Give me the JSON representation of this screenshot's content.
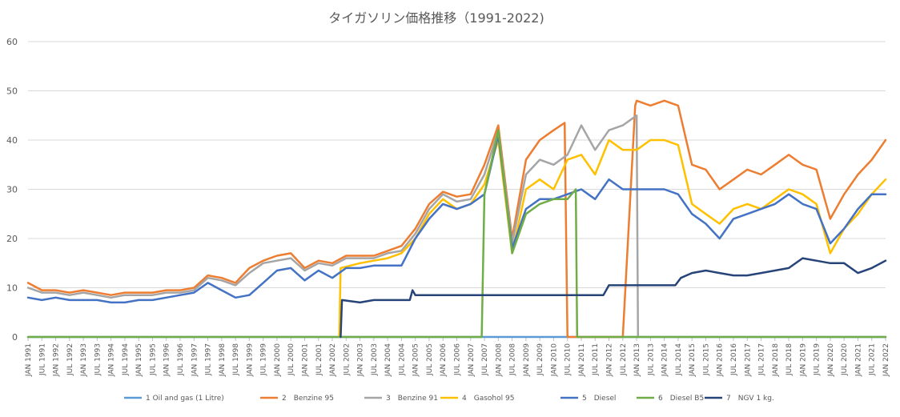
{
  "chart_data": {
    "type": "line",
    "title": "タイガソリン価格推移（1991-2022)",
    "ylim": [
      0,
      60
    ],
    "yticks": [
      "0",
      "10",
      "20",
      "30",
      "40",
      "50",
      "60"
    ],
    "xlim": [
      1991.0,
      2022.0
    ],
    "xtick_labels": [
      "JAN 1991",
      "JUL 1991",
      "JAN 1992",
      "JUL 1992",
      "JAN 1993",
      "JUL 1993",
      "JAN 1994",
      "JUL 1994",
      "JAN 1995",
      "JUL 1995",
      "JAN 1996",
      "JUL 1996",
      "JAN 1997",
      "JUL 1997",
      "JAN 1998",
      "JUL 1998",
      "JAN 1999",
      "JUL 1999",
      "JAN 2000",
      "JUL 2000",
      "JAN 2001",
      "JUL 2001",
      "JAN 2002",
      "JUL 2002",
      "JAN 2003",
      "JUL 2003",
      "JAN 2004",
      "JUL 2004",
      "JAN 2005",
      "JUL 2005",
      "JAN 2006",
      "JUL 2006",
      "JAN 2007",
      "JUL 2007",
      "JAN 2008",
      "JUL 2008",
      "JAN 2009",
      "JUL 2009",
      "JAN 2010",
      "JUL 2010",
      "JAN 2011",
      "JUL 2011",
      "JAN 2012",
      "JUL 2012",
      "JAN 2013",
      "JUL 2013",
      "JAN 2014",
      "JUL 2014",
      "JAN 2015",
      "JUL 2015",
      "JAN 2016",
      "JUL 2016",
      "JAN 2017",
      "JUL 2017",
      "JAN 2018",
      "JUL 2018",
      "JAN 2019",
      "JUL 2019",
      "JAN 2020",
      "JUL 2020",
      "JAN 2021",
      "JUL 2021",
      "JAN 2022"
    ],
    "grid": true,
    "legend_position": "bottom",
    "series": [
      {
        "name": "1 Oil and gas (1 Litre)",
        "color": "#5b9bd5",
        "x": [
          1991.0,
          2022.0
        ],
        "y": [
          0,
          0
        ]
      },
      {
        "name": "2　Benzine 95",
        "color": "#ed7d31",
        "x": [
          1991.0,
          1991.5,
          1992.0,
          1992.5,
          1993.0,
          1993.5,
          1994.0,
          1994.5,
          1995.0,
          1995.5,
          1996.0,
          1996.5,
          1997.0,
          1997.5,
          1998.0,
          1998.5,
          1999.0,
          1999.5,
          2000.0,
          2000.5,
          2001.0,
          2001.5,
          2002.0,
          2002.5,
          2003.0,
          2003.5,
          2004.0,
          2004.5,
          2005.0,
          2005.5,
          2006.0,
          2006.5,
          2007.0,
          2007.5,
          2008.0,
          2008.5,
          2009.0,
          2009.5,
          2010.0,
          2010.4,
          2010.5,
          2011.0,
          2011.5,
          2012.0,
          2012.5,
          2012.95,
          2013.0,
          2013.5,
          2014.0,
          2014.5,
          2015.0,
          2015.5,
          2016.0,
          2016.5,
          2017.0,
          2017.5,
          2018.0,
          2018.5,
          2019.0,
          2019.5,
          2020.0,
          2020.5,
          2021.0,
          2021.5,
          2022.0
        ],
        "y": [
          11,
          9.5,
          9.5,
          9,
          9.5,
          9,
          8.5,
          9,
          9,
          9,
          9.5,
          9.5,
          10,
          12.5,
          12,
          11,
          14,
          15.5,
          16.5,
          17,
          14,
          15.5,
          15,
          16.5,
          16.5,
          16.5,
          17.5,
          18.5,
          22,
          27,
          29.5,
          28.5,
          29,
          35,
          43,
          20,
          36,
          40,
          42,
          43.5,
          0,
          0,
          0,
          0,
          0,
          47,
          48,
          47,
          48,
          47,
          35,
          34,
          30,
          32,
          34,
          33,
          35,
          37,
          35,
          34,
          24,
          29,
          33,
          36,
          40
        ]
      },
      {
        "name": "3　Benzine 91",
        "color": "#a5a5a5",
        "x": [
          1991.0,
          1991.5,
          1992.0,
          1992.5,
          1993.0,
          1993.5,
          1994.0,
          1994.5,
          1995.0,
          1995.5,
          1996.0,
          1996.5,
          1997.0,
          1997.5,
          1998.0,
          1998.5,
          1999.0,
          1999.5,
          2000.0,
          2000.5,
          2001.0,
          2001.5,
          2002.0,
          2002.5,
          2003.0,
          2003.5,
          2004.0,
          2004.5,
          2005.0,
          2005.5,
          2006.0,
          2006.5,
          2007.0,
          2007.5,
          2008.0,
          2008.5,
          2009.0,
          2009.5,
          2010.0,
          2010.5,
          2011.0,
          2011.5,
          2012.0,
          2012.5,
          2013.0,
          2013.05
        ],
        "y": [
          10,
          9,
          9,
          8.5,
          9,
          8.5,
          8,
          8.5,
          8.5,
          8.5,
          9,
          9,
          9.5,
          12,
          11.5,
          10.5,
          13,
          15,
          15.5,
          16,
          13.5,
          15,
          14.5,
          16,
          16,
          16,
          17,
          17.5,
          21,
          26,
          29,
          27.5,
          28,
          33,
          42,
          19,
          33,
          36,
          35,
          37,
          43,
          38,
          42,
          43,
          45,
          0
        ]
      },
      {
        "name": "4　Gasohol 95",
        "color": "#ffc000",
        "x": [
          2002.25,
          2002.3,
          2003.0,
          2003.5,
          2004.0,
          2004.5,
          2005.0,
          2005.5,
          2006.0,
          2006.5,
          2007.0,
          2007.5,
          2008.0,
          2008.5,
          2009.0,
          2009.5,
          2010.0,
          2010.5,
          2011.0,
          2011.5,
          2012.0,
          2012.5,
          2013.0,
          2013.5,
          2014.0,
          2014.5,
          2015.0,
          2015.5,
          2016.0,
          2016.5,
          2017.0,
          2017.5,
          2018.0,
          2018.5,
          2019.0,
          2019.5,
          2020.0,
          2020.5,
          2021.0,
          2021.5,
          2022.0
        ],
        "y": [
          0,
          14,
          15,
          15.5,
          16,
          17,
          20,
          25,
          28,
          26,
          27,
          31,
          40,
          17,
          30,
          32,
          30,
          36,
          37,
          33,
          40,
          38,
          38,
          40,
          40,
          39,
          27,
          25,
          23,
          26,
          27,
          26,
          28,
          30,
          29,
          27,
          17,
          22,
          25,
          29,
          32
        ]
      },
      {
        "name": "5　Diesel",
        "color": "#4472c4",
        "x": [
          1991.0,
          1991.5,
          1992.0,
          1992.5,
          1993.0,
          1993.5,
          1994.0,
          1994.5,
          1995.0,
          1995.5,
          1996.0,
          1996.5,
          1997.0,
          1997.5,
          1998.0,
          1998.5,
          1999.0,
          1999.5,
          2000.0,
          2000.5,
          2001.0,
          2001.5,
          2002.0,
          2002.5,
          2003.0,
          2003.5,
          2004.0,
          2004.5,
          2005.0,
          2005.5,
          2006.0,
          2006.5,
          2007.0,
          2007.5,
          2008.0,
          2008.5,
          2009.0,
          2009.5,
          2010.0,
          2010.5,
          2011.0,
          2011.5,
          2012.0,
          2012.5,
          2013.0,
          2013.5,
          2014.0,
          2014.5,
          2015.0,
          2015.5,
          2016.0,
          2016.5,
          2017.0,
          2017.5,
          2018.0,
          2018.5,
          2019.0,
          2019.5,
          2020.0,
          2020.5,
          2021.0,
          2021.5,
          2022.0
        ],
        "y": [
          8,
          7.5,
          8,
          7.5,
          7.5,
          7.5,
          7,
          7,
          7.5,
          7.5,
          8,
          8.5,
          9,
          11,
          9.5,
          8,
          8.5,
          11,
          13.5,
          14,
          11.5,
          13.5,
          12,
          14,
          14,
          14.5,
          14.5,
          14.5,
          20,
          24,
          27,
          26,
          27,
          29,
          41,
          18,
          26,
          28,
          28,
          29,
          30,
          28,
          32,
          30,
          30,
          30,
          30,
          29,
          25,
          23,
          20,
          24,
          25,
          26,
          27,
          29,
          27,
          26,
          19,
          22,
          26,
          29,
          29
        ]
      },
      {
        "name": "6　Diesel B5",
        "color": "#70ad47",
        "x": [
          1991.0,
          2007.4,
          2007.5,
          2008.0,
          2008.5,
          2009.0,
          2009.5,
          2010.0,
          2010.5,
          2010.8,
          2010.85,
          2022.0
        ],
        "y": [
          0,
          0,
          29,
          42,
          17,
          25,
          27,
          28,
          28,
          30,
          0,
          0
        ]
      },
      {
        "name": "7　NGV 1 kg.",
        "color": "#264478",
        "x": [
          2002.3,
          2002.35,
          2003.0,
          2003.5,
          2004.0,
          2004.5,
          2004.8,
          2004.9,
          2005.0,
          2006.0,
          2007.0,
          2008.0,
          2009.0,
          2010.0,
          2011.0,
          2011.8,
          2012.0,
          2013.0,
          2014.0,
          2014.4,
          2014.6,
          2015.0,
          2015.5,
          2016.0,
          2016.5,
          2017.0,
          2017.5,
          2018.0,
          2018.5,
          2019.0,
          2019.5,
          2020.0,
          2020.5,
          2021.0,
          2021.5,
          2022.0
        ],
        "y": [
          0,
          7.5,
          7,
          7.5,
          7.5,
          7.5,
          7.5,
          9.5,
          8.5,
          8.5,
          8.5,
          8.5,
          8.5,
          8.5,
          8.5,
          8.5,
          10.5,
          10.5,
          10.5,
          10.5,
          12,
          13,
          13.5,
          13,
          12.5,
          12.5,
          13,
          13.5,
          14,
          16,
          15.5,
          15,
          15,
          13,
          14,
          15.5
        ]
      }
    ]
  }
}
